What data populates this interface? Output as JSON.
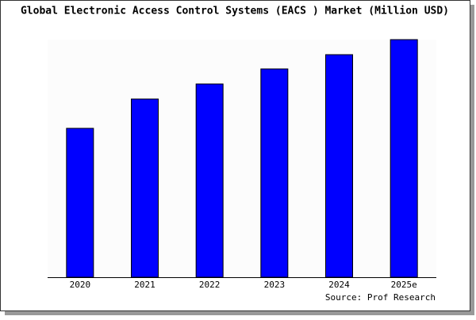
{
  "chart_data": {
    "type": "bar",
    "title": "Global Electronic Access Control Systems (EACS ) Market (Million USD)",
    "categories": [
      "2020",
      "2021",
      "2022",
      "2023",
      "2024",
      "2025e"
    ],
    "values": [
      188,
      225,
      244,
      263,
      281,
      300
    ],
    "color": "#0000ff",
    "source": "Source: Prof Research"
  }
}
